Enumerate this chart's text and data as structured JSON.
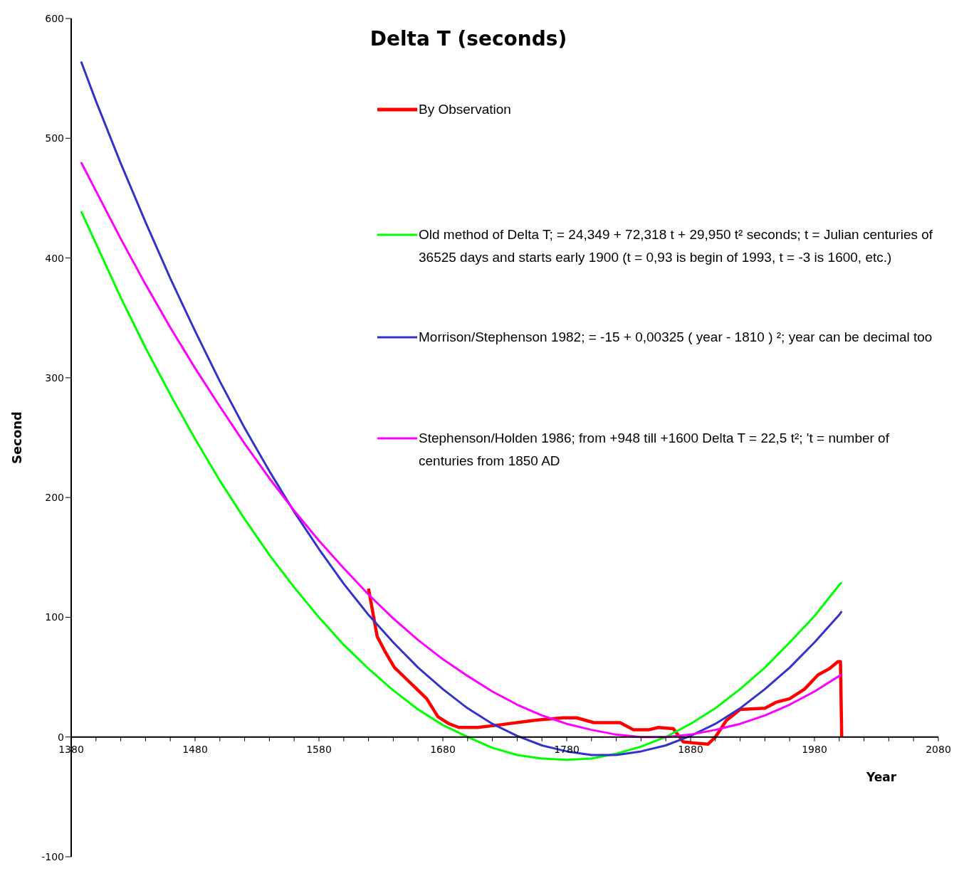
{
  "chart_data": {
    "type": "line",
    "title": "Delta T (seconds)",
    "xlabel": "Year",
    "ylabel": "Second",
    "xlim": [
      1380,
      2080
    ],
    "ylim": [
      -100,
      600
    ],
    "xticks": [
      1380,
      {
        "value": 1400,
        "label": null
      },
      {
        "value": 1420,
        "label": null
      },
      {
        "value": 1440,
        "label": null
      },
      {
        "value": 1460,
        "label": null
      },
      1480,
      {
        "value": 1500,
        "label": null
      },
      {
        "value": 1520,
        "label": null
      },
      {
        "value": 1540,
        "label": null
      },
      {
        "value": 1560,
        "label": null
      },
      1580,
      {
        "value": 1600,
        "label": null
      },
      {
        "value": 1620,
        "label": null
      },
      {
        "value": 1640,
        "label": null
      },
      {
        "value": 1660,
        "label": null
      },
      1680,
      {
        "value": 1700,
        "label": null
      },
      {
        "value": 1720,
        "label": null
      },
      {
        "value": 1740,
        "label": null
      },
      {
        "value": 1760,
        "label": null
      },
      1780,
      {
        "value": 1800,
        "label": null
      },
      {
        "value": 1820,
        "label": null
      },
      {
        "value": 1840,
        "label": null
      },
      {
        "value": 1860,
        "label": null
      },
      1880,
      {
        "value": 1900,
        "label": null
      },
      {
        "value": 1920,
        "label": null
      },
      {
        "value": 1940,
        "label": null
      },
      {
        "value": 1960,
        "label": null
      },
      1980,
      {
        "value": 2000,
        "label": null
      },
      {
        "value": 2020,
        "label": null
      },
      {
        "value": 2040,
        "label": null
      },
      {
        "value": 2060,
        "label": null
      },
      2080
    ],
    "yticks": [
      -100,
      0,
      100,
      200,
      300,
      400,
      500,
      600
    ],
    "grid": false,
    "legend": "top right",
    "marker": "none",
    "line_style": "solid",
    "series": [
      {
        "name": "By Observation",
        "color": "#ff0000",
        "x": [
          1620,
          1627,
          1633,
          1641,
          1650,
          1659,
          1667,
          1676,
          1685,
          1693,
          1708,
          1725,
          1754,
          1777,
          1788,
          1802,
          1823,
          1834,
          1846,
          1854,
          1866,
          1874,
          1883,
          1894,
          1900,
          1909,
          1920,
          1940,
          1949,
          1960,
          1972,
          1983,
          1992,
          1999,
          2001,
          2002
        ],
        "values": [
          124,
          84,
          72,
          58,
          49,
          40,
          32,
          17,
          11,
          8,
          8,
          10,
          14,
          16,
          16,
          12,
          12,
          6,
          6,
          8,
          7,
          -4,
          -5,
          -6,
          0,
          14,
          23,
          24,
          29,
          32,
          40,
          52,
          57,
          63,
          63,
          0
        ]
      },
      {
        "name": "Old method of Delta T; = 24,349 + 72,318 t + 29,950 t² seconds; t = Julian centuries of 36525 days and starts early 1900 (t = 0,93 is begin of 1993, t = -3 is 1600, etc.)",
        "color": "#00ff00",
        "x": [
          1388,
          1400,
          1420,
          1440,
          1460,
          1480,
          1500,
          1520,
          1540,
          1560,
          1580,
          1600,
          1620,
          1640,
          1660,
          1680,
          1700,
          1720,
          1740,
          1760,
          1780,
          1800,
          1820,
          1840,
          1860,
          1880,
          1900,
          1920,
          1940,
          1960,
          1980,
          2000,
          2002
        ],
        "values": [
          439,
          412,
          367,
          325,
          286,
          249,
          214,
          182,
          152,
          125,
          100,
          77,
          57,
          39,
          23,
          10,
          0,
          -9,
          -15,
          -18,
          -19,
          -18,
          -14,
          -8,
          0,
          11,
          24,
          40,
          58,
          79,
          101,
          127,
          129
        ]
      },
      {
        "name": "Morrison/Stephenson 1982; = -15 + 0,00325 ( year - 1810 ) ²; year can be decimal too",
        "color": "#3333cc",
        "x": [
          1388,
          1400,
          1420,
          1440,
          1460,
          1480,
          1500,
          1520,
          1540,
          1560,
          1580,
          1600,
          1620,
          1640,
          1660,
          1680,
          1700,
          1720,
          1740,
          1760,
          1780,
          1800,
          1820,
          1840,
          1860,
          1880,
          1900,
          1920,
          1940,
          1960,
          1980,
          2000,
          2002
        ],
        "values": [
          564,
          531,
          479,
          430,
          383,
          339,
          297,
          258,
          222,
          188,
          157,
          128,
          102,
          79,
          58,
          40,
          24,
          11,
          1,
          -7,
          -12,
          -15,
          -15,
          -12,
          -7,
          1,
          11,
          24,
          40,
          58,
          79,
          102,
          105
        ]
      },
      {
        "name": "Stephenson/Holden 1986; from +948 till +1600 Delta T = 22,5 t²; 't = number of centuries from 1850 AD",
        "color": "#ff00ff",
        "x": [
          1388,
          1400,
          1420,
          1440,
          1460,
          1480,
          1500,
          1520,
          1540,
          1560,
          1580,
          1600,
          1620,
          1640,
          1660,
          1680,
          1700,
          1720,
          1740,
          1760,
          1780,
          1800,
          1820,
          1840,
          1860,
          1880,
          1900,
          1920,
          1940,
          1960,
          1980,
          2000,
          2002
        ],
        "values": [
          480,
          456,
          416,
          378,
          342,
          308,
          276,
          245,
          216,
          189,
          164,
          141,
          119,
          99,
          81,
          65,
          51,
          38,
          27,
          18,
          11,
          6,
          2,
          0,
          0,
          2,
          6,
          11,
          18,
          27,
          38,
          51,
          52
        ]
      }
    ]
  }
}
